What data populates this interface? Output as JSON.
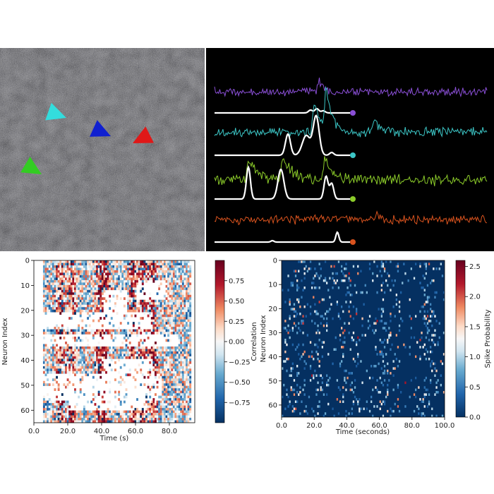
{
  "chart_data": [
    {
      "type": "image",
      "panel": "microscopy-field",
      "arrow_markers": [
        {
          "color": "#33dddd"
        },
        {
          "color": "#1020d0"
        },
        {
          "color": "#e01818"
        },
        {
          "color": "#33cc22"
        }
      ]
    },
    {
      "type": "line",
      "panel": "calcium-traces",
      "background": "#000000",
      "series": [
        {
          "color": "#8a4fd6",
          "kind": "raw",
          "marker_color": "#8a4fd6"
        },
        {
          "color": "#ffffff",
          "kind": "inferred"
        },
        {
          "color": "#3cc6c6",
          "kind": "raw",
          "marker_color": "#3cc6c6"
        },
        {
          "color": "#ffffff",
          "kind": "inferred"
        },
        {
          "color": "#8ccc2a",
          "kind": "raw",
          "marker_color": "#8ccc2a"
        },
        {
          "color": "#ffffff",
          "kind": "inferred"
        },
        {
          "color": "#d9531e",
          "kind": "raw",
          "marker_color": "#d9531e"
        },
        {
          "color": "#ffffff",
          "kind": "inferred"
        }
      ]
    },
    {
      "type": "heatmap",
      "panel": "correlation-heatmap",
      "xlabel": "Time (s)",
      "ylabel": "Neuron Index",
      "xlim": [
        0,
        95
      ],
      "ylim": [
        65,
        0
      ],
      "xticks": [
        "0.0",
        "20.0",
        "40.0",
        "60.0",
        "80.0"
      ],
      "yticks": [
        "0",
        "10",
        "20",
        "30",
        "40",
        "50",
        "60"
      ],
      "colorbar": {
        "label": "Correlation",
        "range": [
          -1,
          1
        ],
        "ticks": [
          "0.75",
          "0.50",
          "0.25",
          "0.00",
          "−0.25",
          "−0.50",
          "−0.75"
        ],
        "colormap": "RdBu_r"
      }
    },
    {
      "type": "heatmap",
      "panel": "spike-probability-heatmap",
      "xlabel": "Time (seconds)",
      "ylabel": "Neuron Index",
      "xlim": [
        0,
        100
      ],
      "ylim": [
        65,
        0
      ],
      "xticks": [
        "0.0",
        "20.0",
        "40.0",
        "60.0",
        "80.0",
        "100.0"
      ],
      "yticks": [
        "0",
        "10",
        "20",
        "30",
        "40",
        "50",
        "60"
      ],
      "colorbar": {
        "label": "Spike Probability",
        "range": [
          0,
          2.6
        ],
        "ticks": [
          "2.5",
          "2.0",
          "1.5",
          "1.0",
          "0.5",
          "0.0"
        ],
        "colormap": "RdBu_r"
      }
    }
  ]
}
